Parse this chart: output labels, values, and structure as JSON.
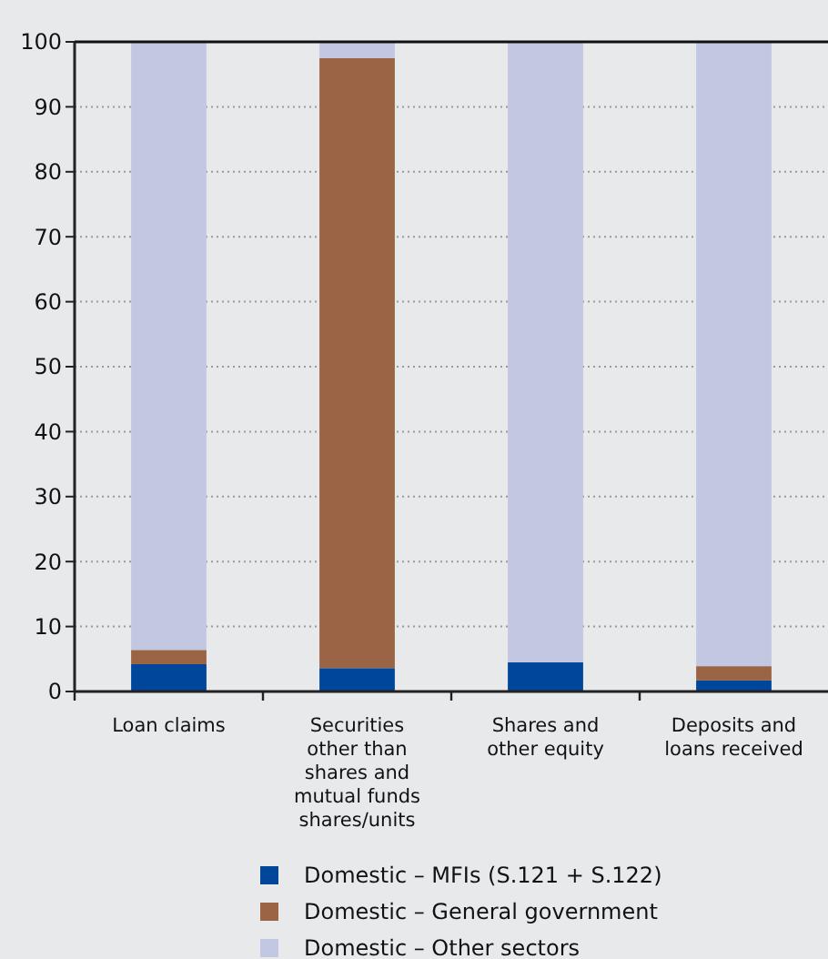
{
  "chart_data": {
    "type": "bar",
    "stacked": true,
    "categories": [
      "Loan claims",
      "Securities other than shares and mutual funds shares/units",
      "Shares and other equity",
      "Deposits and loans received"
    ],
    "series": [
      {
        "name": "Domestic – MFIs (S.121 + S.122)",
        "color": "#00479b",
        "values": [
          4.2,
          3.6,
          4.5,
          1.7
        ]
      },
      {
        "name": "Domestic – General government",
        "color": "#9a6445",
        "values": [
          2.2,
          93.9,
          0,
          2.2
        ]
      },
      {
        "name": "Domestic – Other sectors",
        "color": "#c3c8e2",
        "values": [
          93.6,
          2.5,
          95.5,
          96.1
        ]
      }
    ],
    "ylim": [
      0,
      100
    ],
    "yticks": [
      0,
      10,
      20,
      30,
      40,
      50,
      60,
      70,
      80,
      90,
      100
    ],
    "grid": "y",
    "legend": "bottom"
  }
}
